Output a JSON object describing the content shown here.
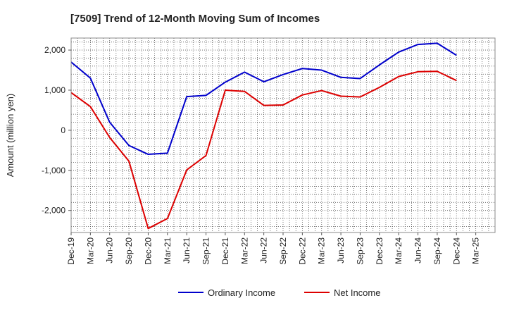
{
  "chart_data": {
    "type": "line",
    "title": "[7509]  Trend of 12-Month Moving Sum of Incomes",
    "xlabel": "",
    "ylabel": "Amount (million yen)",
    "ylim": [
      -2550,
      2300
    ],
    "yticks": [
      2000,
      1000,
      0,
      -1000,
      -2000
    ],
    "ytick_labels": [
      "2,000",
      "1,000",
      "0",
      "-1,000",
      "-2,000"
    ],
    "categories": [
      "Dec-19",
      "Mar-20",
      "Jun-20",
      "Sep-20",
      "Dec-20",
      "Mar-21",
      "Jun-21",
      "Sep-21",
      "Dec-21",
      "Mar-22",
      "Jun-22",
      "Sep-22",
      "Dec-22",
      "Mar-23",
      "Jun-23",
      "Sep-23",
      "Dec-23",
      "Mar-24",
      "Jun-24",
      "Sep-24",
      "Dec-24",
      "Mar-25"
    ],
    "grid": true,
    "legend_position": "bottom",
    "series": [
      {
        "name": "Ordinary Income",
        "color": "#0000cc",
        "values": [
          1700,
          1300,
          200,
          -380,
          -600,
          -570,
          840,
          870,
          1200,
          1450,
          1210,
          1390,
          1540,
          1500,
          1320,
          1290,
          1630,
          1950,
          2140,
          2170,
          1870,
          null
        ]
      },
      {
        "name": "Net Income",
        "color": "#dd0000",
        "values": [
          940,
          590,
          -180,
          -770,
          -2450,
          -2200,
          -990,
          -630,
          1000,
          970,
          620,
          630,
          880,
          990,
          850,
          830,
          1070,
          1340,
          1460,
          1470,
          1240,
          null
        ]
      }
    ]
  }
}
